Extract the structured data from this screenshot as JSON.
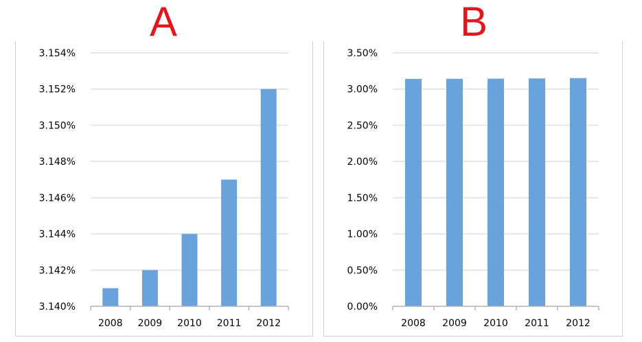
{
  "colors": {
    "title": "#e3161b",
    "bar": "#6aa3dc",
    "grid": "#e6e6e6",
    "axis": "#b3b3b3"
  },
  "chart_data": [
    {
      "type": "bar",
      "title": "A",
      "categories": [
        "2008",
        "2009",
        "2010",
        "2011",
        "2012"
      ],
      "values": [
        3.141,
        3.142,
        3.144,
        3.147,
        3.152
      ],
      "ylim": [
        3.14,
        3.154
      ],
      "yticks": [
        {
          "v": 3.14,
          "label": "3.140%"
        },
        {
          "v": 3.142,
          "label": "3.142%"
        },
        {
          "v": 3.144,
          "label": "3.144%"
        },
        {
          "v": 3.146,
          "label": "3.146%"
        },
        {
          "v": 3.148,
          "label": "3.148%"
        },
        {
          "v": 3.15,
          "label": "3.150%"
        },
        {
          "v": 3.152,
          "label": "3.152%"
        },
        {
          "v": 3.154,
          "label": "3.154%"
        }
      ],
      "grid": true,
      "xlabel": "",
      "ylabel": ""
    },
    {
      "type": "bar",
      "title": "B",
      "categories": [
        "2008",
        "2009",
        "2010",
        "2011",
        "2012"
      ],
      "values": [
        3.141,
        3.142,
        3.144,
        3.147,
        3.152
      ],
      "ylim": [
        0,
        3.5
      ],
      "yticks": [
        {
          "v": 0.0,
          "label": "0.00%"
        },
        {
          "v": 0.5,
          "label": "0.50%"
        },
        {
          "v": 1.0,
          "label": "1.00%"
        },
        {
          "v": 1.5,
          "label": "1.50%"
        },
        {
          "v": 2.0,
          "label": "2.00%"
        },
        {
          "v": 2.5,
          "label": "2.50%"
        },
        {
          "v": 3.0,
          "label": "3.00%"
        },
        {
          "v": 3.5,
          "label": "3.50%"
        }
      ],
      "grid": true,
      "xlabel": "",
      "ylabel": ""
    }
  ]
}
